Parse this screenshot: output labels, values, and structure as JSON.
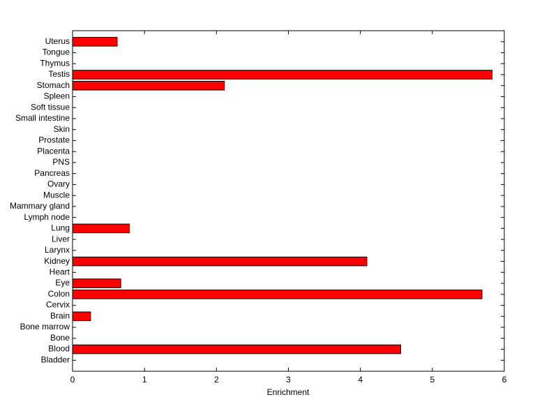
{
  "chart_data": {
    "type": "barh",
    "xlabel": "Enrichment",
    "categories": [
      "Bladder",
      "Blood",
      "Bone",
      "Bone marrow",
      "Brain",
      "Cervix",
      "Colon",
      "Eye",
      "Heart",
      "Kidney",
      "Larynx",
      "Liver",
      "Lung",
      "Lymph node",
      "Mammary gland",
      "Muscle",
      "Ovary",
      "Pancreas",
      "PNS",
      "Placenta",
      "Prostate",
      "Skin",
      "Small intestine",
      "Soft tissue",
      "Spleen",
      "Stomach",
      "Testis",
      "Thymus",
      "Tongue",
      "Uterus"
    ],
    "values": [
      0,
      4.56,
      0,
      0,
      0.25,
      0,
      5.69,
      0.67,
      0,
      4.09,
      0,
      0,
      0.79,
      0,
      0,
      0,
      0,
      0,
      0,
      0,
      0,
      0,
      0,
      0,
      0,
      2.11,
      5.83,
      0,
      0,
      0.62
    ],
    "color": "#ff0000",
    "xlim": [
      0,
      6
    ],
    "xticks": [
      0,
      1,
      2,
      3,
      4,
      5,
      6
    ]
  }
}
